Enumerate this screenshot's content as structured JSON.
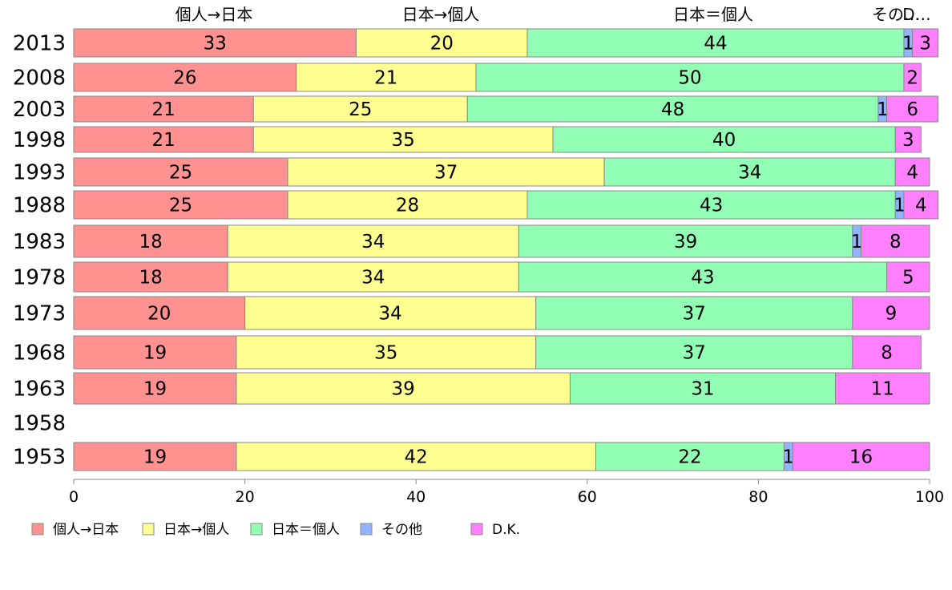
{
  "chart_data": {
    "type": "bar",
    "orientation": "horizontal",
    "stacked": true,
    "categories": [
      "2013",
      "2008",
      "2003",
      "1998",
      "1993",
      "1988",
      "1983",
      "1978",
      "1973",
      "1968",
      "1963",
      "1958",
      "1953"
    ],
    "series": [
      {
        "name": "個人→日本",
        "color": "#ff9191",
        "values": [
          33,
          26,
          21,
          21,
          25,
          25,
          18,
          18,
          20,
          19,
          19,
          null,
          19
        ]
      },
      {
        "name": "日本→個人",
        "color": "#ffff91",
        "values": [
          20,
          21,
          25,
          35,
          37,
          28,
          34,
          34,
          34,
          35,
          39,
          null,
          42
        ]
      },
      {
        "name": "日本＝個人",
        "color": "#91ffb4",
        "values": [
          44,
          50,
          48,
          40,
          34,
          43,
          39,
          43,
          37,
          37,
          31,
          null,
          22
        ]
      },
      {
        "name": "その他",
        "color": "#91b4ff",
        "values": [
          1,
          0,
          1,
          0,
          0,
          1,
          1,
          0,
          0,
          0,
          0,
          null,
          1
        ]
      },
      {
        "name": "D.K.",
        "color": "#ff80ff",
        "values": [
          3,
          2,
          6,
          3,
          4,
          4,
          8,
          5,
          9,
          8,
          11,
          null,
          16
        ]
      }
    ],
    "bar_labels": [
      [
        "33",
        "20",
        "44",
        "1",
        "3"
      ],
      [
        "26",
        "21",
        "50",
        "",
        "2"
      ],
      [
        "21",
        "25",
        "48",
        "1",
        "6"
      ],
      [
        "21",
        "35",
        "40",
        "",
        "3"
      ],
      [
        "25",
        "37",
        "34",
        "",
        "4"
      ],
      [
        "25",
        "28",
        "43",
        "1",
        "4"
      ],
      [
        "18",
        "34",
        "39",
        "1",
        "8"
      ],
      [
        "18",
        "34",
        "43",
        "",
        "5"
      ],
      [
        "20",
        "34",
        "37",
        "",
        "9"
      ],
      [
        "19",
        "35",
        "37",
        "",
        "8"
      ],
      [
        "19",
        "39",
        "31",
        "",
        "11"
      ],
      [
        "",
        "",
        "",
        "",
        ""
      ],
      [
        "19",
        "42",
        "22",
        "1",
        "16"
      ]
    ],
    "column_headers": [
      "個人→日本",
      "日本→個人",
      "日本＝個人",
      "その…",
      "D…"
    ],
    "xlim": [
      0,
      100
    ],
    "xticks": [
      "0",
      "20",
      "40",
      "60",
      "80",
      "100"
    ],
    "legend_position": "bottom-left",
    "grid": false
  }
}
